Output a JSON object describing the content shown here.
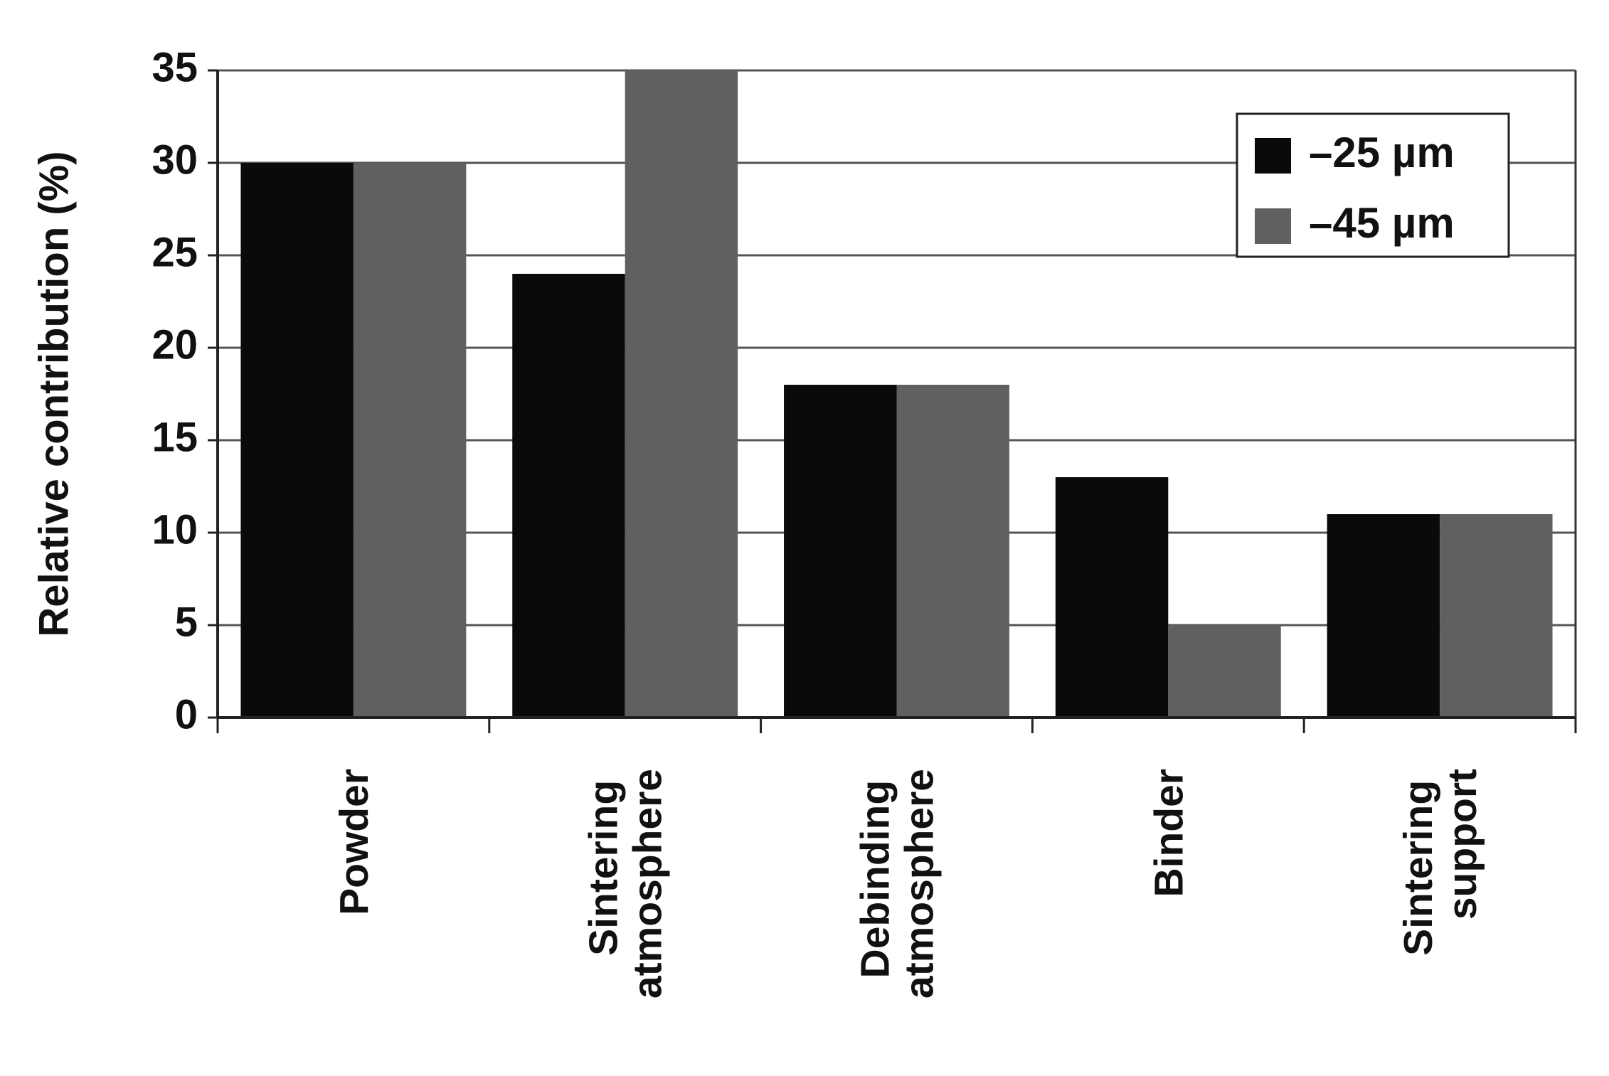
{
  "chart_data": {
    "type": "bar",
    "y_label": "Relative contribution (%)",
    "categories": [
      "Powder",
      "Sintering atmosphere",
      "Debinding atmosphere",
      "Binder",
      "Sintering support"
    ],
    "series": [
      {
        "name": "–25 µm",
        "color": "#0a0a0a",
        "values": [
          30,
          24,
          18,
          13,
          11
        ]
      },
      {
        "name": "–45 µm",
        "color": "#606060",
        "values": [
          30,
          35,
          18,
          5,
          11
        ]
      }
    ],
    "ylim": [
      0,
      35
    ],
    "yticks": [
      0,
      5,
      10,
      15,
      20,
      25,
      30,
      35
    ],
    "grid": true,
    "legend": "upper right"
  }
}
